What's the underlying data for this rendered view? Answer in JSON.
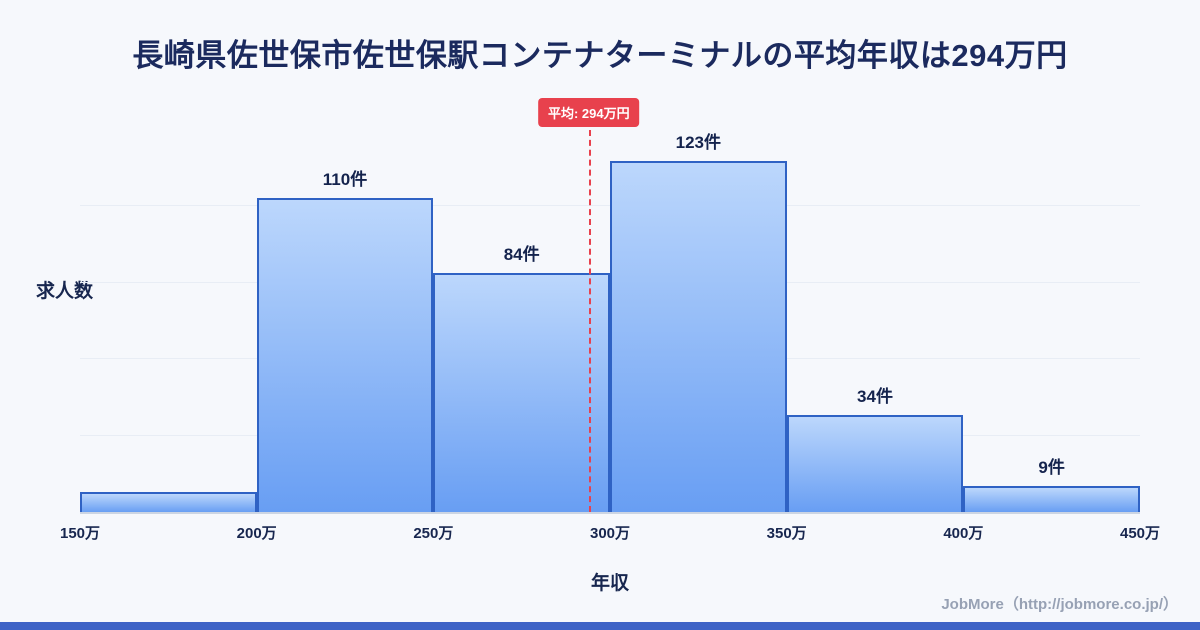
{
  "title": "長崎県佐世保市佐世保駅コンテナターミナルの平均年収は294万円",
  "footer": "JobMore（http://jobmore.co.jp/）",
  "colors": {
    "title_color": "#1b2a5e",
    "accent_red": "#e8414d",
    "bar_top": "#bcd7fc",
    "bar_bottom": "#689ef3",
    "bar_border": "#2f62c4",
    "footer_bar": "#3e63c6"
  },
  "chart_data": {
    "type": "bar",
    "title": "長崎県佐世保市佐世保駅コンテナターミナルの平均年収は294万円",
    "xlabel": "年収",
    "ylabel": "求人数",
    "x_tick_labels": [
      "150万",
      "200万",
      "250万",
      "300万",
      "350万",
      "400万",
      "450万"
    ],
    "x_range": [
      150,
      450
    ],
    "ylim": [
      0,
      134
    ],
    "grid": true,
    "legend": false,
    "bars": [
      {
        "range_start": "150万",
        "range_end": "200万",
        "value": 7,
        "label": ""
      },
      {
        "range_start": "200万",
        "range_end": "250万",
        "value": 110,
        "label": "110件"
      },
      {
        "range_start": "250万",
        "range_end": "300万",
        "value": 84,
        "label": "84件"
      },
      {
        "range_start": "300万",
        "range_end": "350万",
        "value": 123,
        "label": "123件"
      },
      {
        "range_start": "350万",
        "range_end": "400万",
        "value": 34,
        "label": "34件"
      },
      {
        "range_start": "400万",
        "range_end": "450万",
        "value": 9,
        "label": "9件"
      }
    ],
    "average_line": {
      "value": 294,
      "label": "平均: 294万円"
    }
  }
}
